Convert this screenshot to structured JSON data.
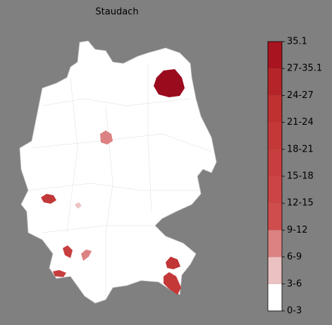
{
  "title": "Staudach",
  "legend": {
    "ticks": [
      "0-3",
      "3-6",
      "6-9",
      "9-12",
      "12-15",
      "15-18",
      "18-21",
      "21-24",
      "24-27",
      "27-35.1",
      "35.1"
    ],
    "colors": [
      "#ffffff",
      "#ecc1c1",
      "#dc8282",
      "#cf4d4d",
      "#cc4444",
      "#c83e3e",
      "#c43838",
      "#bf3030",
      "#b52528",
      "#a8141f"
    ]
  }
}
